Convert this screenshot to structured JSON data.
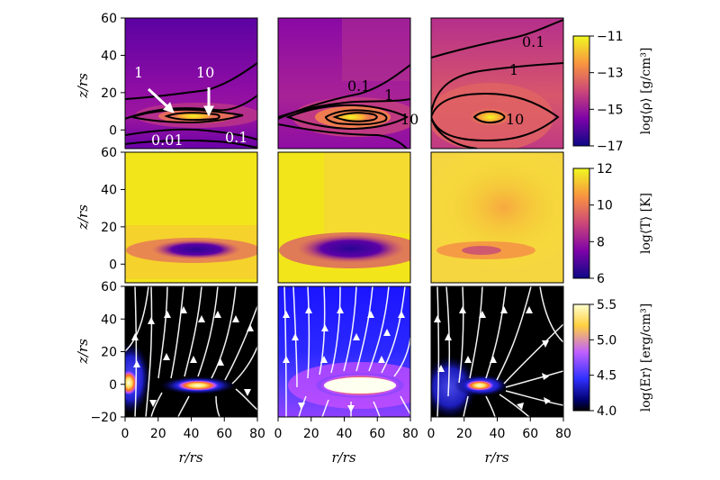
{
  "chart_data": {
    "type": "heatmap",
    "columns": 3,
    "rows": [
      {
        "quantity": "density",
        "colorbar_label": "log⟨ρ⟩ [g/cm³]",
        "colorbar_ticks": [
          "−11",
          "−13",
          "−15",
          "−17"
        ],
        "colorbar_range": [
          -17,
          -11
        ],
        "colormap": "plasma",
        "contour_levels": [
          "0.01",
          "0.1",
          "1",
          "10"
        ],
        "annotations": [
          {
            "panel": 0,
            "labels": [
              "1",
              "10",
              "0.01",
              "0.1"
            ]
          },
          {
            "panel": 1,
            "labels": [
              "0.1",
              "1",
              "10"
            ]
          },
          {
            "panel": 2,
            "labels": [
              "0.1",
              "1",
              "10"
            ]
          }
        ]
      },
      {
        "quantity": "temperature",
        "colorbar_label": "log⟨T⟩ [K]",
        "colorbar_ticks": [
          "12",
          "10",
          "8",
          "6"
        ],
        "colorbar_range": [
          6,
          12
        ],
        "colormap": "plasma"
      },
      {
        "quantity": "radiation energy density",
        "colorbar_label": "log⟨Er⟩ [erg/cm³]",
        "colorbar_ticks": [
          "5.5",
          "5.0",
          "4.5",
          "4.0"
        ],
        "colorbar_range": [
          4.0,
          5.5
        ],
        "colormap": "gnuplot2",
        "streamlines": "white"
      }
    ],
    "x_axis": {
      "label": "r/rs",
      "ticks": [
        "0",
        "20",
        "40",
        "60",
        "80"
      ],
      "range": [
        0,
        80
      ]
    },
    "y_axis_rows_1_2": {
      "label": "z/rs",
      "ticks": [
        "60",
        "40",
        "20",
        "0"
      ],
      "range": [
        -10,
        60
      ]
    },
    "y_axis_row_3": {
      "label": "z/rs",
      "ticks": [
        "60",
        "40",
        "20",
        "0",
        "−20"
      ],
      "range": [
        -20,
        60
      ]
    },
    "colors": {
      "plasma_low": "#0d0887",
      "plasma_mid": "#cc4778",
      "plasma_high": "#f0f921",
      "gnuplot2_low": "#000000",
      "gnuplot2_mid": "#7a30ff",
      "gnuplot2_high": "#ffffd0"
    }
  }
}
